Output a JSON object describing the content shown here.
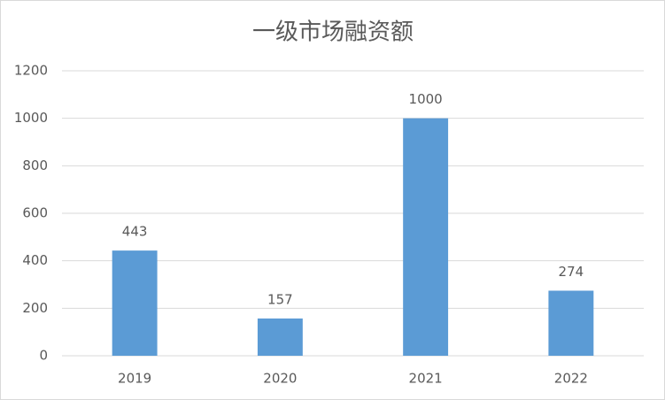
{
  "chart_data": {
    "type": "bar",
    "title": "一级市场融资额",
    "categories": [
      "2019",
      "2020",
      "2021",
      "2022"
    ],
    "values": [
      443,
      157,
      1000,
      274
    ],
    "color": "#5b9bd5",
    "ylim": [
      0,
      1200
    ],
    "yticks": [
      0,
      200,
      400,
      600,
      800,
      1000,
      1200
    ],
    "grid": true,
    "data_labels": true
  }
}
